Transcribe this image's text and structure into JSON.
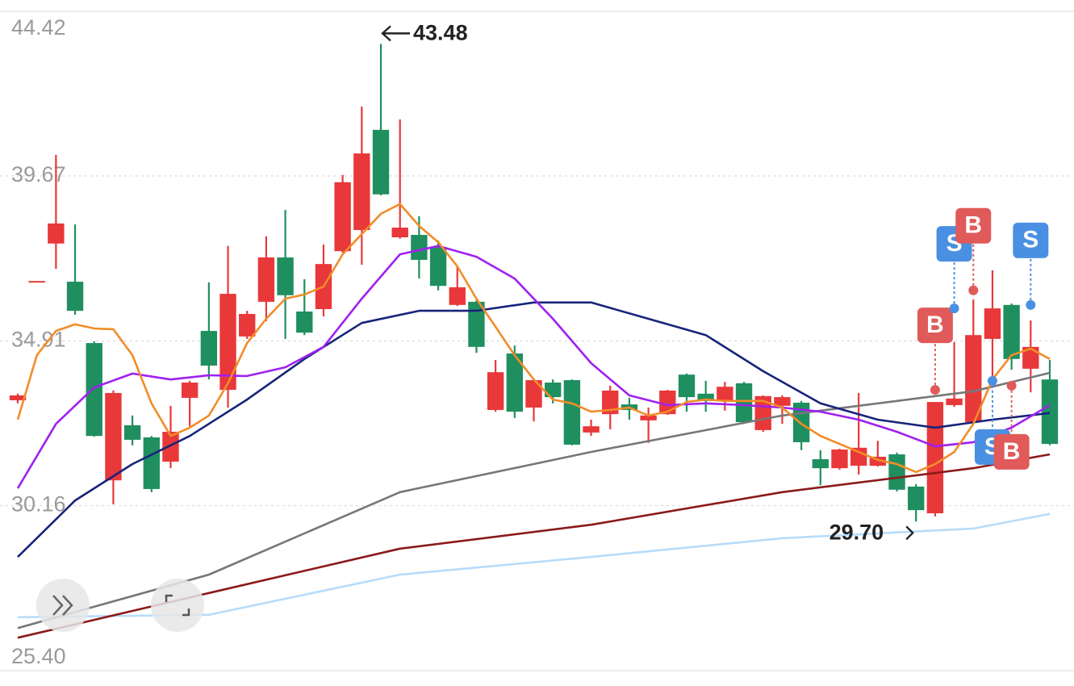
{
  "chart_data": {
    "type": "candlestick",
    "ylim": [
      25.4,
      44.42
    ],
    "yticks": [
      44.42,
      39.67,
      34.91,
      30.16,
      {
        "value": 25.4,
        "label": "25.40"
      }
    ],
    "grid": true,
    "up_color": "#e8383a",
    "down_color": "#1f8f5f",
    "open": [
      33.2,
      36.6,
      37.72,
      36.62,
      34.85,
      30.89,
      32.48,
      32.13,
      31.43,
      33.27,
      35.2,
      33.5,
      35.04,
      36.04,
      37.32,
      35.76,
      35.83,
      37.5,
      38.11,
      41.0,
      37.9,
      37.97,
      37.62,
      35.95,
      36.04,
      32.92,
      34.55,
      32.99,
      33.71,
      33.78,
      32.27,
      32.8,
      33.08,
      32.62,
      32.8,
      33.94,
      33.39,
      33.18,
      33.69,
      32.34,
      33.04,
      33.13,
      31.5,
      31.24,
      31.31,
      31.31,
      31.64,
      30.71,
      29.94,
      33.06,
      32.57,
      34.97,
      35.95,
      34.11,
      33.8
    ],
    "high": [
      33.39,
      36.64,
      40.28,
      38.27,
      34.9,
      33.48,
      32.76,
      32.17,
      33.04,
      33.76,
      36.6,
      37.65,
      35.78,
      37.93,
      38.69,
      36.69,
      37.69,
      39.7,
      41.67,
      43.48,
      41.3,
      38.51,
      37.81,
      37.06,
      36.09,
      34.36,
      34.78,
      33.83,
      33.8,
      33.8,
      32.64,
      33.62,
      33.27,
      32.99,
      33.5,
      33.97,
      33.76,
      33.73,
      33.73,
      33.34,
      33.34,
      33.18,
      31.76,
      31.8,
      33.41,
      32.03,
      31.69,
      30.78,
      33.15,
      34.88,
      36.11,
      36.95,
      35.99,
      35.5,
      34.36
    ],
    "low": [
      33.11,
      36.6,
      36.99,
      35.67,
      32.15,
      30.2,
      31.9,
      30.55,
      31.24,
      32.45,
      33.8,
      32.99,
      34.97,
      35.48,
      34.97,
      35.08,
      35.62,
      37.46,
      37.11,
      39.11,
      37.86,
      36.71,
      36.37,
      35.92,
      34.57,
      32.87,
      32.69,
      32.59,
      33.11,
      31.9,
      32.17,
      32.36,
      32.64,
      31.97,
      32.78,
      32.87,
      32.87,
      32.9,
      32.52,
      32.29,
      32.52,
      31.76,
      30.75,
      31.2,
      31.06,
      31.29,
      30.57,
      29.7,
      29.85,
      33.01,
      32.52,
      33.76,
      34.08,
      33.43,
      31.9
    ],
    "close": [
      33.34,
      36.64,
      38.3,
      35.78,
      32.17,
      33.41,
      32.06,
      30.64,
      32.29,
      33.71,
      34.2,
      36.27,
      35.69,
      37.32,
      36.23,
      35.15,
      37.13,
      39.49,
      40.32,
      39.14,
      38.18,
      37.25,
      36.5,
      36.46,
      34.74,
      34.01,
      32.87,
      33.78,
      33.29,
      31.92,
      32.45,
      33.48,
      32.92,
      32.76,
      33.48,
      33.29,
      33.18,
      33.59,
      32.57,
      33.32,
      33.29,
      31.99,
      31.24,
      31.78,
      31.83,
      31.57,
      30.62,
      30.03,
      33.15,
      33.25,
      35.08,
      35.85,
      34.39,
      34.74,
      31.94
    ],
    "lines": [
      {
        "color": "#b7dcfa",
        "x": [
          0,
          10,
          20,
          30,
          40,
          50,
          54
        ],
        "values": [
          26.94,
          27.01,
          28.17,
          28.68,
          29.22,
          29.5,
          29.92
        ]
      },
      {
        "color": "#8b1a1a",
        "x": [
          0,
          10,
          20,
          30,
          40,
          50,
          54
        ],
        "values": [
          26.35,
          27.64,
          28.92,
          29.61,
          30.55,
          31.24,
          31.64
        ]
      },
      {
        "color": "#777777",
        "x": [
          0,
          10,
          20,
          30,
          40,
          50,
          54
        ],
        "values": [
          26.63,
          28.17,
          30.55,
          31.71,
          32.76,
          33.46,
          33.99
        ]
      },
      {
        "color": "#17247a",
        "x": [
          0,
          3,
          6,
          9,
          12,
          15,
          18,
          21,
          24,
          27,
          30,
          33,
          36,
          39,
          42,
          45,
          48,
          51,
          54
        ],
        "values": [
          28.68,
          30.31,
          31.36,
          32.17,
          33.22,
          34.39,
          35.43,
          35.78,
          35.78,
          36.02,
          36.02,
          35.55,
          35.08,
          34.04,
          33.11,
          32.64,
          32.41,
          32.64,
          32.83
        ]
      },
      {
        "color": "#a020f0",
        "x": [
          0,
          2,
          4,
          6,
          8,
          10,
          12,
          14,
          16,
          18,
          20,
          22,
          24,
          26,
          28,
          30,
          32,
          34,
          36,
          38,
          40,
          42,
          44,
          46,
          48,
          50,
          52,
          54
        ],
        "values": [
          30.66,
          32.52,
          33.57,
          33.97,
          33.8,
          33.92,
          33.9,
          34.15,
          34.74,
          36.13,
          37.41,
          37.65,
          37.34,
          36.71,
          35.55,
          34.27,
          33.34,
          33.06,
          33.11,
          33.06,
          32.99,
          32.87,
          32.64,
          32.29,
          31.87,
          31.99,
          32.41,
          33.06
        ]
      },
      {
        "color": "#f28c28",
        "x": [
          0,
          1,
          2,
          3,
          4,
          5,
          6,
          7,
          8,
          9,
          10,
          11,
          12,
          13,
          14,
          15,
          16,
          17,
          18,
          19,
          20,
          21,
          22,
          23,
          24,
          25,
          26,
          27,
          28,
          29,
          30,
          31,
          32,
          33,
          34,
          35,
          36,
          37,
          38,
          39,
          40,
          41,
          42,
          43,
          44,
          45,
          46,
          47,
          48,
          49,
          50,
          51,
          52,
          53,
          54
        ],
        "values": [
          32.64,
          34.5,
          35.2,
          35.39,
          35.27,
          35.25,
          34.5,
          33.11,
          32.17,
          32.41,
          32.76,
          33.69,
          34.85,
          35.55,
          36.13,
          36.25,
          36.48,
          37.41,
          37.99,
          38.58,
          38.86,
          38.23,
          37.76,
          37.06,
          36.13,
          35.32,
          34.5,
          33.8,
          33.22,
          33.11,
          32.87,
          32.92,
          32.99,
          32.76,
          32.87,
          33.15,
          33.22,
          33.18,
          33.18,
          33.18,
          32.99,
          32.52,
          32.17,
          31.94,
          31.71,
          31.48,
          31.36,
          31.13,
          31.36,
          31.71,
          32.52,
          33.8,
          34.5,
          34.69,
          34.39
        ]
      }
    ],
    "trades": [
      {
        "index": 48,
        "label": "B",
        "price": 33.5,
        "color": "#e05a5a",
        "placement": "above"
      },
      {
        "index": 49,
        "label": "S",
        "price": 35.85,
        "color": "#4a90e2",
        "placement": "above"
      },
      {
        "index": 50,
        "label": "B",
        "price": 36.37,
        "color": "#e05a5a",
        "placement": "above"
      },
      {
        "index": 51,
        "label": "S",
        "price": 33.76,
        "color": "#4a90e2",
        "placement": "below"
      },
      {
        "index": 52,
        "label": "B",
        "price": 33.62,
        "color": "#e05a5a",
        "placement": "below"
      },
      {
        "index": 53,
        "label": "S",
        "price": 35.95,
        "color": "#4a90e2",
        "placement": "above"
      }
    ],
    "annotations": [
      {
        "value": 43.48,
        "label": "43.48",
        "arrow": "left"
      },
      {
        "value": 29.7,
        "label": "29.70",
        "arrow": "right"
      }
    ]
  }
}
